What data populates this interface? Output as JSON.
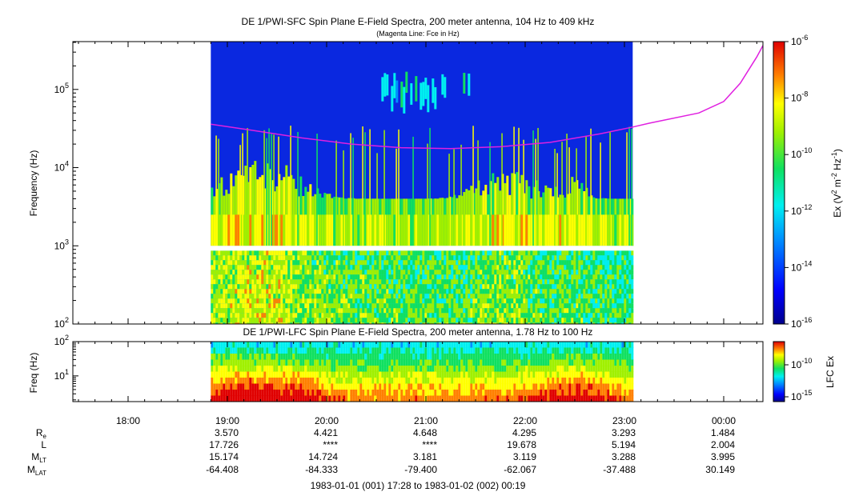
{
  "chart_data": [
    {
      "type": "heatmap",
      "title": "DE 1/PWI-SFC  Spin Plane E-Field Spectra, 200 meter antenna, 104 Hz to 409 kHz",
      "subtitle": "(Magenta Line: Fce in Hz)",
      "ylabel": "Frequency (Hz)",
      "yscale": "log",
      "ylim": [
        100,
        409000
      ],
      "yticks": [
        {
          "base": "10",
          "exp": "2"
        },
        {
          "base": "10",
          "exp": "3"
        },
        {
          "base": "10",
          "exp": "4"
        },
        {
          "base": "10",
          "exp": "5"
        }
      ],
      "data_time_range": [
        "18:50",
        "23:05"
      ],
      "colorbar": {
        "label_parts": [
          "Ex (V",
          "2",
          " m",
          "-2",
          " Hz",
          "-1",
          ")"
        ],
        "scale": "log",
        "range": [
          1e-16,
          1e-06
        ],
        "ticks": [
          {
            "base": "10",
            "exp": "-6"
          },
          {
            "base": "10",
            "exp": "-8"
          },
          {
            "base": "10",
            "exp": "-10"
          },
          {
            "base": "10",
            "exp": "-12"
          },
          {
            "base": "10",
            "exp": "-14"
          },
          {
            "base": "10",
            "exp": "-16"
          }
        ]
      },
      "series": [
        {
          "color": "#e020e0",
          "points": [
            [
              "18:50",
              36000
            ],
            [
              "19:15",
              30000
            ],
            [
              "19:45",
              24000
            ],
            [
              "20:15",
              20000
            ],
            [
              "20:45",
              18000
            ],
            [
              "21:15",
              17500
            ],
            [
              "21:45",
              18500
            ],
            [
              "22:15",
              21000
            ],
            [
              "22:45",
              27000
            ],
            [
              "23:05",
              33000
            ],
            [
              "23:15",
              37000
            ],
            [
              "23:45",
              50000
            ],
            [
              "00:00",
              70000
            ],
            [
              "00:10",
              120000
            ],
            [
              "00:20",
              260000
            ],
            [
              "00:25",
              409000
            ]
          ]
        }
      ]
    },
    {
      "type": "heatmap",
      "title": "DE 1/PWI-LFC  Spin Plane E-Field Spectra, 200 meter antenna, 1.78 Hz to 100 Hz",
      "ylabel": "Freq (Hz)",
      "yscale": "log",
      "ylim": [
        1.78,
        100
      ],
      "yticks": [
        {
          "base": "10",
          "exp": "1"
        },
        {
          "base": "10",
          "exp": "2"
        }
      ],
      "data_time_range": [
        "18:50",
        "23:05"
      ],
      "colorbar": {
        "label": "LFC Ex",
        "scale": "log",
        "ticks": [
          {
            "base": "10",
            "exp": "-10"
          },
          {
            "base": "10",
            "exp": "-15"
          }
        ]
      }
    }
  ],
  "x_axis": {
    "ticks": [
      "18:00",
      "19:00",
      "20:00",
      "21:00",
      "22:00",
      "23:00",
      "00:00"
    ],
    "range_label": "1983-01-01 (001) 17:28 to 1983-01-02 (002) 00:19"
  },
  "ephemeris": {
    "labels": [
      {
        "base": "R",
        "sub": "e"
      },
      {
        "base": "L",
        "sub": ""
      },
      {
        "base": "M",
        "sub": "LT"
      },
      {
        "base": "M",
        "sub": "LAT"
      }
    ],
    "rows": [
      [
        "3.570",
        "4.421",
        "4.648",
        "4.295",
        "3.293",
        "1.484"
      ],
      [
        "17.726",
        "****",
        "****",
        "19.678",
        "5.194",
        "2.004"
      ],
      [
        "15.174",
        "14.724",
        "3.181",
        "3.119",
        "3.288",
        "3.995"
      ],
      [
        "-64.408",
        "-84.333",
        "-79.400",
        "-62.067",
        "-37.488",
        "30.149"
      ]
    ]
  }
}
